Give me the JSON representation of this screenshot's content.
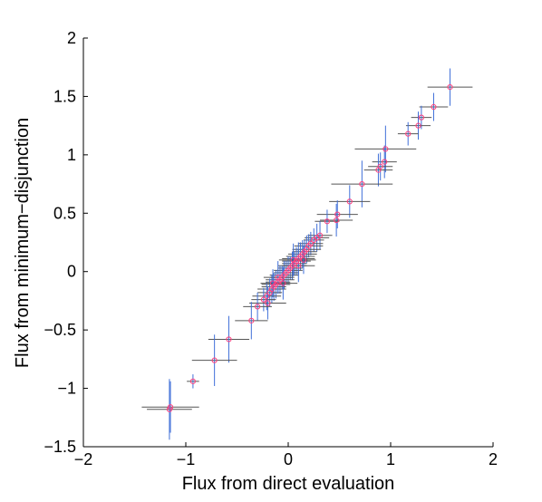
{
  "chart_data": {
    "type": "scatter",
    "title": "",
    "xlabel": "Flux from direct evaluation",
    "ylabel": "Flux from minimum−disjunction",
    "xlim": [
      -2,
      2
    ],
    "ylim": [
      -1.5,
      2
    ],
    "xticks": [
      -2,
      -1,
      0,
      1,
      2
    ],
    "yticks": [
      -1.5,
      -1,
      -0.5,
      0,
      0.5,
      1,
      1.5,
      2
    ],
    "xtick_labels": [
      "−2",
      "−1",
      "0",
      "1",
      "2"
    ],
    "ytick_labels": [
      "−1.5",
      "−1",
      "−0.5",
      "0",
      "0.5",
      "1",
      "1.5",
      "2"
    ],
    "grid": false,
    "legend": "none",
    "colors": {
      "marker": "#ff3f7f",
      "x_error": "#555555",
      "y_error": "#3f6fd8",
      "axis": "#000000"
    },
    "points": [
      {
        "x": 1.58,
        "y": 1.58,
        "xerr": 0.22,
        "yerr": 0.16
      },
      {
        "x": 1.42,
        "y": 1.41,
        "xerr": 0.14,
        "yerr": 0.12
      },
      {
        "x": 1.3,
        "y": 1.32,
        "xerr": 0.1,
        "yerr": 0.1
      },
      {
        "x": 1.27,
        "y": 1.25,
        "xerr": 0.12,
        "yerr": 0.12
      },
      {
        "x": 1.17,
        "y": 1.18,
        "xerr": 0.1,
        "yerr": 0.1
      },
      {
        "x": 0.95,
        "y": 1.05,
        "xerr": 0.3,
        "yerr": 0.2
      },
      {
        "x": 0.94,
        "y": 0.94,
        "xerr": 0.12,
        "yerr": 0.14
      },
      {
        "x": 0.9,
        "y": 0.9,
        "xerr": 0.12,
        "yerr": 0.12
      },
      {
        "x": 0.88,
        "y": 0.87,
        "xerr": 0.14,
        "yerr": 0.14
      },
      {
        "x": 0.72,
        "y": 0.75,
        "xerr": 0.3,
        "yerr": 0.2
      },
      {
        "x": 0.6,
        "y": 0.6,
        "xerr": 0.2,
        "yerr": 0.14
      },
      {
        "x": 0.48,
        "y": 0.49,
        "xerr": 0.2,
        "yerr": 0.12
      },
      {
        "x": 0.47,
        "y": 0.44,
        "xerr": 0.16,
        "yerr": 0.14
      },
      {
        "x": 0.38,
        "y": 0.43,
        "xerr": 0.12,
        "yerr": 0.1
      },
      {
        "x": 0.31,
        "y": 0.31,
        "xerr": 0.12,
        "yerr": 0.12
      },
      {
        "x": 0.28,
        "y": 0.29,
        "xerr": 0.12,
        "yerr": 0.12
      },
      {
        "x": 0.25,
        "y": 0.27,
        "xerr": 0.1,
        "yerr": 0.1
      },
      {
        "x": 0.22,
        "y": 0.24,
        "xerr": 0.12,
        "yerr": 0.1
      },
      {
        "x": 0.2,
        "y": 0.22,
        "xerr": 0.14,
        "yerr": 0.1
      },
      {
        "x": 0.18,
        "y": 0.19,
        "xerr": 0.14,
        "yerr": 0.12
      },
      {
        "x": 0.16,
        "y": 0.17,
        "xerr": 0.12,
        "yerr": 0.1
      },
      {
        "x": 0.14,
        "y": 0.15,
        "xerr": 0.14,
        "yerr": 0.12
      },
      {
        "x": 0.12,
        "y": 0.13,
        "xerr": 0.14,
        "yerr": 0.12
      },
      {
        "x": 0.1,
        "y": 0.11,
        "xerr": 0.16,
        "yerr": 0.14
      },
      {
        "x": 0.08,
        "y": 0.09,
        "xerr": 0.14,
        "yerr": 0.12
      },
      {
        "x": 0.06,
        "y": 0.07,
        "xerr": 0.12,
        "yerr": 0.1
      },
      {
        "x": 0.04,
        "y": 0.05,
        "xerr": 0.14,
        "yerr": 0.12
      },
      {
        "x": 0.02,
        "y": 0.03,
        "xerr": 0.12,
        "yerr": 0.1
      },
      {
        "x": 0.0,
        "y": 0.01,
        "xerr": 0.14,
        "yerr": 0.12
      },
      {
        "x": -0.02,
        "y": -0.01,
        "xerr": 0.12,
        "yerr": 0.1
      },
      {
        "x": -0.04,
        "y": -0.03,
        "xerr": 0.14,
        "yerr": 0.12
      },
      {
        "x": -0.06,
        "y": -0.05,
        "xerr": 0.12,
        "yerr": 0.1
      },
      {
        "x": -0.08,
        "y": -0.07,
        "xerr": 0.14,
        "yerr": 0.12
      },
      {
        "x": -0.1,
        "y": -0.09,
        "xerr": 0.12,
        "yerr": 0.1
      },
      {
        "x": -0.12,
        "y": -0.11,
        "xerr": 0.14,
        "yerr": 0.12
      },
      {
        "x": -0.14,
        "y": -0.13,
        "xerr": 0.12,
        "yerr": 0.12
      },
      {
        "x": -0.16,
        "y": -0.15,
        "xerr": 0.14,
        "yerr": 0.12
      },
      {
        "x": -0.18,
        "y": -0.18,
        "xerr": 0.12,
        "yerr": 0.12
      },
      {
        "x": -0.21,
        "y": -0.21,
        "xerr": 0.14,
        "yerr": 0.12
      },
      {
        "x": -0.24,
        "y": -0.24,
        "xerr": 0.12,
        "yerr": 0.1
      },
      {
        "x": -0.2,
        "y": -0.27,
        "xerr": 0.18,
        "yerr": 0.14
      },
      {
        "x": -0.3,
        "y": -0.3,
        "xerr": 0.14,
        "yerr": 0.12
      },
      {
        "x": -0.36,
        "y": -0.42,
        "xerr": 0.16,
        "yerr": 0.16
      },
      {
        "x": -0.58,
        "y": -0.58,
        "xerr": 0.2,
        "yerr": 0.2
      },
      {
        "x": -0.72,
        "y": -0.76,
        "xerr": 0.22,
        "yerr": 0.22
      },
      {
        "x": -0.93,
        "y": -0.94,
        "xerr": 0.06,
        "yerr": 0.06
      },
      {
        "x": -1.15,
        "y": -1.16,
        "xerr": 0.28,
        "yerr": 0.22
      },
      {
        "x": -1.16,
        "y": -1.18,
        "xerr": 0.22,
        "yerr": 0.26
      },
      {
        "x": 0.1,
        "y": 0.05,
        "xerr": 0.16,
        "yerr": 0.14
      },
      {
        "x": 0.05,
        "y": 0.1,
        "xerr": 0.14,
        "yerr": 0.14
      },
      {
        "x": -0.05,
        "y": -0.1,
        "xerr": 0.14,
        "yerr": 0.14
      },
      {
        "x": -0.1,
        "y": -0.05,
        "xerr": 0.14,
        "yerr": 0.14
      },
      {
        "x": 0.15,
        "y": 0.1,
        "xerr": 0.12,
        "yerr": 0.12
      },
      {
        "x": -0.15,
        "y": -0.1,
        "xerr": 0.12,
        "yerr": 0.12
      }
    ]
  }
}
